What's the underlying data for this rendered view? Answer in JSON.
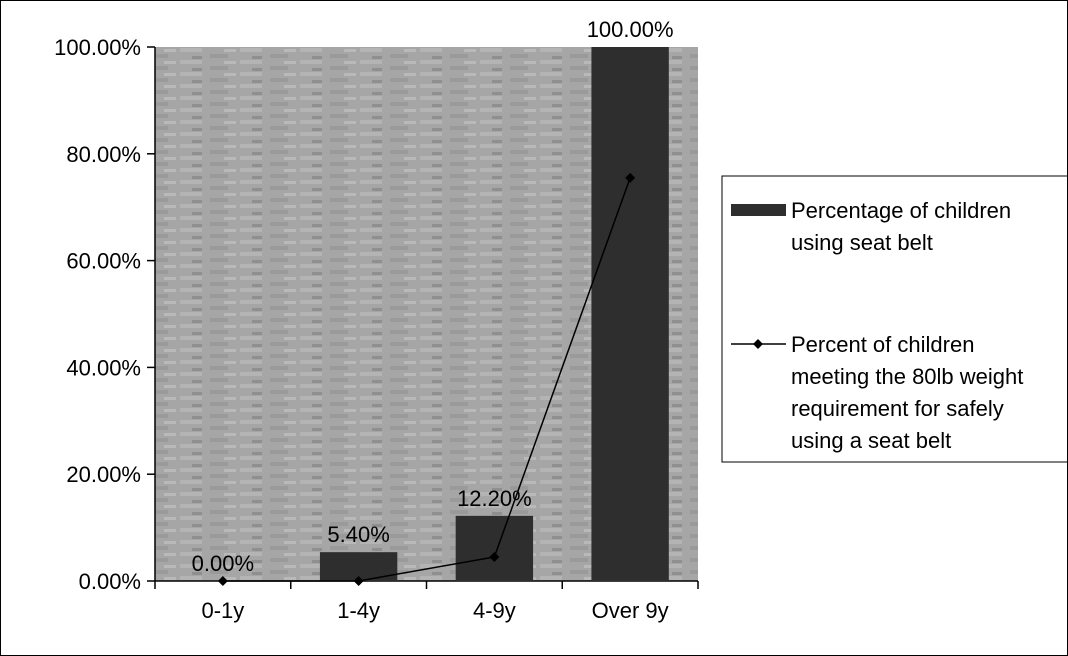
{
  "chart_data": {
    "type": "bar",
    "categories": [
      "0-1y",
      "1-4y",
      "4-9y",
      "Over 9y"
    ],
    "series": [
      {
        "name": "Percentage of children using seat belt",
        "chart_type": "bar",
        "values": [
          0.0,
          5.4,
          12.2,
          100.0
        ],
        "data_labels": [
          "0.00%",
          "5.40%",
          "12.20%",
          "100.00%"
        ]
      },
      {
        "name": "Percent of children meeting the 80lb weight requirement for safely using a seat belt",
        "chart_type": "line",
        "marker": "diamond",
        "values": [
          0.0,
          0.0,
          4.5,
          75.5
        ]
      }
    ],
    "ylim": [
      0,
      100
    ],
    "yticks": [
      0,
      20,
      40,
      60,
      80,
      100
    ],
    "ytick_labels": [
      "0.00%",
      "20.00%",
      "40.00%",
      "60.00%",
      "80.00%",
      "100.00%"
    ],
    "legend": {
      "placement": "right",
      "bar_entry_lines": [
        "Percentage of children",
        "using seat belt"
      ],
      "line_entry_lines": [
        "Percent of children",
        "meeting the 80lb weight",
        "requirement for safely",
        "using a seat belt"
      ]
    },
    "grid": false,
    "colors": {
      "bar": "#2e2e2e",
      "plot_background": "#a9a9a9",
      "line": "#000000"
    }
  }
}
